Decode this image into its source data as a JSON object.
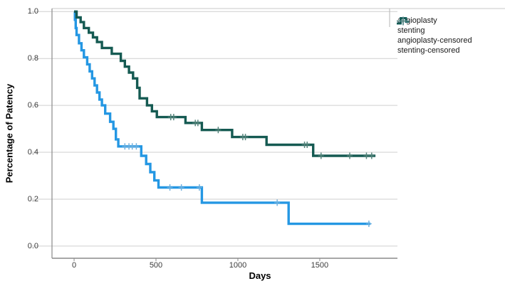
{
  "chart_data": {
    "type": "line",
    "subtype": "kaplan-meier-step-survival",
    "title": "",
    "xlabel": "Days",
    "ylabel": "Percentage of Patency",
    "grid": "horizontal",
    "legend_position": "top-right",
    "xlim": [
      -135,
      1970
    ],
    "ylim": [
      -0.052,
      1.013
    ],
    "x_tick_values": [
      0,
      500,
      1000,
      1500
    ],
    "x_tick_labels": [
      "0",
      "500",
      "1000",
      "1500"
    ],
    "y_tick_values": [
      1.0,
      0.8,
      0.6,
      0.4,
      0.2,
      0.0
    ],
    "y_tick_labels": [
      "1.0",
      "0.8",
      "0.6",
      "0.4",
      "0.2",
      "0.0"
    ],
    "series": [
      {
        "name": "angioplasty",
        "color": "#2497E3",
        "censor_color": "#6FB0DE",
        "steps": [
          [
            0,
            1.0
          ],
          [
            5,
            0.965
          ],
          [
            10,
            0.93
          ],
          [
            15,
            0.9
          ],
          [
            30,
            0.865
          ],
          [
            45,
            0.835
          ],
          [
            60,
            0.805
          ],
          [
            80,
            0.775
          ],
          [
            95,
            0.745
          ],
          [
            110,
            0.715
          ],
          [
            125,
            0.685
          ],
          [
            140,
            0.655
          ],
          [
            155,
            0.625
          ],
          [
            170,
            0.6
          ],
          [
            190,
            0.565
          ],
          [
            220,
            0.53
          ],
          [
            240,
            0.5
          ],
          [
            255,
            0.455
          ],
          [
            270,
            0.425
          ],
          [
            410,
            0.385
          ],
          [
            440,
            0.35
          ],
          [
            465,
            0.315
          ],
          [
            490,
            0.28
          ],
          [
            515,
            0.25
          ],
          [
            780,
            0.185
          ],
          [
            1310,
            0.095
          ]
        ],
        "end_day": 1810,
        "censored": [
          [
            310,
            0.425
          ],
          [
            335,
            0.425
          ],
          [
            355,
            0.425
          ],
          [
            380,
            0.425
          ],
          [
            585,
            0.25
          ],
          [
            655,
            0.25
          ],
          [
            765,
            0.25
          ],
          [
            1240,
            0.185
          ],
          [
            1800,
            0.095
          ]
        ]
      },
      {
        "name": "stenting",
        "color": "#155A52",
        "censor_color": "#55847B",
        "steps": [
          [
            0,
            1.0
          ],
          [
            15,
            0.975
          ],
          [
            40,
            0.955
          ],
          [
            60,
            0.93
          ],
          [
            90,
            0.91
          ],
          [
            115,
            0.89
          ],
          [
            140,
            0.87
          ],
          [
            170,
            0.845
          ],
          [
            230,
            0.82
          ],
          [
            285,
            0.79
          ],
          [
            310,
            0.765
          ],
          [
            335,
            0.74
          ],
          [
            360,
            0.715
          ],
          [
            385,
            0.675
          ],
          [
            400,
            0.63
          ],
          [
            445,
            0.6
          ],
          [
            475,
            0.575
          ],
          [
            505,
            0.55
          ],
          [
            680,
            0.525
          ],
          [
            780,
            0.495
          ],
          [
            965,
            0.465
          ],
          [
            1175,
            0.432
          ],
          [
            1460,
            0.385
          ]
        ],
        "end_day": 1840,
        "censored": [
          [
            590,
            0.55
          ],
          [
            608,
            0.55
          ],
          [
            740,
            0.525
          ],
          [
            756,
            0.525
          ],
          [
            880,
            0.495
          ],
          [
            1030,
            0.465
          ],
          [
            1046,
            0.465
          ],
          [
            1407,
            0.432
          ],
          [
            1423,
            0.432
          ],
          [
            1508,
            0.385
          ],
          [
            1683,
            0.385
          ],
          [
            1785,
            0.385
          ],
          [
            1817,
            0.385
          ]
        ]
      }
    ],
    "legend": [
      {
        "label": "angioplasty",
        "marker": "step-line",
        "color": "#2497E3"
      },
      {
        "label": "stenting",
        "marker": "step-line",
        "color": "#155A52"
      },
      {
        "label": "angioplasty-censored",
        "marker": "plus",
        "color": "#6FB0DE"
      },
      {
        "label": "stenting-censored",
        "marker": "plus",
        "color": "#55847B"
      }
    ],
    "frame": {
      "axis_color": "#8a8a8a",
      "grid_color": "#cfcfcf",
      "top_line_color": "#c8c8c8"
    }
  }
}
